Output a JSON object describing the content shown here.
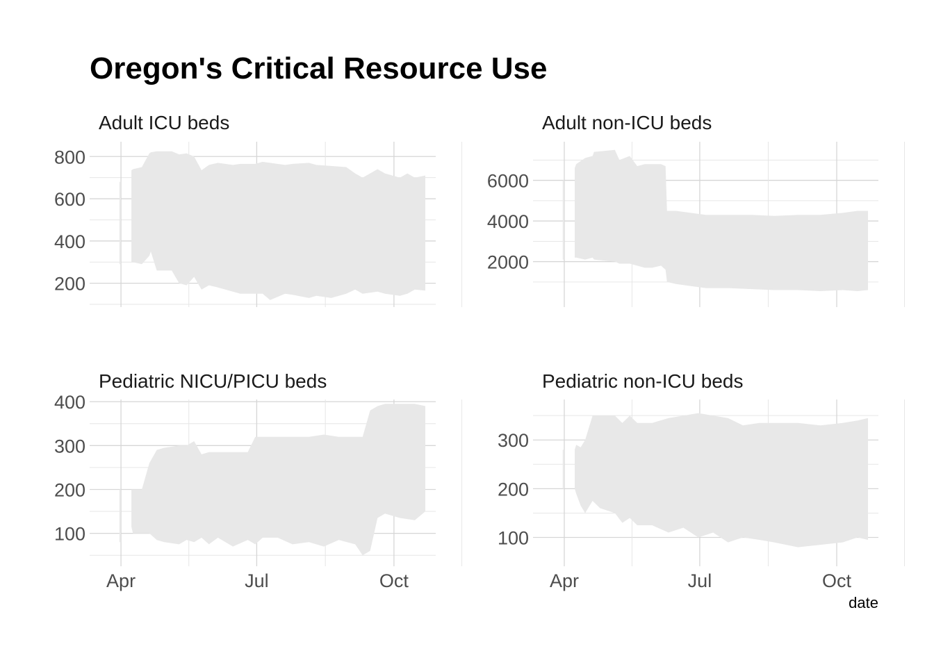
{
  "chart_data": {
    "type": "area",
    "title": "Oregon's Critical Resource Use",
    "xlabel": "date",
    "ylabel": "",
    "grid": true,
    "layout": "2x2 facets",
    "fill_color": "#e8e8e8",
    "x_ticks": [
      {
        "label": "Apr",
        "date": "2020-04-01"
      },
      {
        "label": "Jul",
        "date": "2020-07-01"
      },
      {
        "label": "Oct",
        "date": "2020-10-01"
      }
    ],
    "xlim": [
      "2020-03-11",
      "2020-10-29"
    ],
    "panels": [
      {
        "label": "Adult ICU beds",
        "ylim": [
          100,
          870
        ],
        "y_ticks": [
          200,
          400,
          600,
          800
        ],
        "x_labels_visible": false,
        "series": [
          {
            "x": [
              "2020-03-31",
              "2020-04-01",
              "2020-04-02",
              "2020-04-08",
              "2020-04-09",
              "2020-04-15",
              "2020-04-20",
              "2020-04-21",
              "2020-04-25",
              "2020-05-05",
              "2020-05-10",
              "2020-05-15",
              "2020-05-20",
              "2020-05-25",
              "2020-05-30",
              "2020-06-05",
              "2020-06-15",
              "2020-06-20",
              "2020-06-30",
              "2020-07-05",
              "2020-07-10",
              "2020-07-20",
              "2020-07-25",
              "2020-08-05",
              "2020-08-10",
              "2020-08-20",
              "2020-08-30",
              "2020-09-05",
              "2020-09-10",
              "2020-09-20",
              "2020-09-25",
              "2020-10-05",
              "2020-10-10",
              "2020-10-15",
              "2020-10-22"
            ],
            "upper": [
              680,
              680,
              null,
              735,
              740,
              750,
              815,
              820,
              825,
              825,
              810,
              815,
              800,
              735,
              760,
              770,
              760,
              765,
              765,
              775,
              770,
              760,
              765,
              770,
              760,
              755,
              750,
              720,
              700,
              740,
              720,
              700,
              720,
              700,
              710
            ],
            "lower": [
              290,
              290,
              null,
              300,
              300,
              290,
              330,
              350,
              260,
              260,
              200,
              190,
              230,
              170,
              190,
              180,
              160,
              150,
              150,
              150,
              120,
              150,
              145,
              130,
              140,
              130,
              150,
              170,
              150,
              160,
              150,
              140,
              150,
              170,
              165
            ]
          }
        ]
      },
      {
        "label": "Adult non-ICU beds",
        "ylim": [
          -100,
          7900
        ],
        "y_ticks": [
          2000,
          4000,
          6000
        ],
        "x_labels_visible": false,
        "series": [
          {
            "x": [
              "2020-03-31",
              "2020-04-01",
              "2020-04-02",
              "2020-04-08",
              "2020-04-09",
              "2020-04-15",
              "2020-04-20",
              "2020-04-21",
              "2020-05-05",
              "2020-05-08",
              "2020-05-15",
              "2020-05-20",
              "2020-05-25",
              "2020-05-30",
              "2020-06-05",
              "2020-06-08",
              "2020-06-09",
              "2020-06-15",
              "2020-06-25",
              "2020-07-05",
              "2020-07-20",
              "2020-08-05",
              "2020-08-20",
              "2020-09-05",
              "2020-09-20",
              "2020-10-05",
              "2020-10-15",
              "2020-10-22"
            ],
            "upper": [
              6000,
              6000,
              null,
              6600,
              6800,
              7100,
              7200,
              7400,
              7500,
              7000,
              7200,
              6700,
              6800,
              6800,
              6800,
              6700,
              4500,
              4500,
              4400,
              4300,
              4300,
              4300,
              4250,
              4300,
              4300,
              4400,
              4500,
              4500
            ],
            "lower": [
              2100,
              2100,
              null,
              2200,
              2200,
              2100,
              2200,
              2100,
              2000,
              1900,
              1900,
              1800,
              1700,
              1700,
              1800,
              1600,
              1000,
              900,
              800,
              700,
              700,
              650,
              600,
              600,
              550,
              600,
              550,
              600
            ]
          }
        ]
      },
      {
        "label": "Pediatric NICU/PICU beds",
        "ylim": [
          44,
          405
        ],
        "y_ticks": [
          100,
          200,
          300,
          400
        ],
        "x_labels_visible": true,
        "series": [
          {
            "x": [
              "2020-03-31",
              "2020-04-01",
              "2020-04-02",
              "2020-04-08",
              "2020-04-09",
              "2020-04-15",
              "2020-04-20",
              "2020-04-25",
              "2020-04-30",
              "2020-05-10",
              "2020-05-15",
              "2020-05-20",
              "2020-05-25",
              "2020-05-30",
              "2020-06-05",
              "2020-06-15",
              "2020-06-25",
              "2020-06-30",
              "2020-07-05",
              "2020-07-15",
              "2020-07-25",
              "2020-08-05",
              "2020-08-15",
              "2020-08-25",
              "2020-09-05",
              "2020-09-10",
              "2020-09-15",
              "2020-09-20",
              "2020-09-25",
              "2020-10-05",
              "2020-10-15",
              "2020-10-22"
            ],
            "upper": [
              200,
              200,
              null,
              200,
              200,
              200,
              260,
              290,
              295,
              300,
              300,
              310,
              280,
              285,
              285,
              285,
              285,
              320,
              320,
              320,
              320,
              320,
              325,
              320,
              320,
              320,
              380,
              390,
              395,
              395,
              395,
              390
            ],
            "lower": [
              80,
              80,
              null,
              115,
              100,
              100,
              100,
              85,
              80,
              75,
              85,
              80,
              90,
              75,
              90,
              70,
              85,
              75,
              90,
              90,
              75,
              80,
              70,
              85,
              75,
              50,
              60,
              135,
              145,
              135,
              130,
              150
            ]
          }
        ]
      },
      {
        "label": "Pediatric non-ICU beds",
        "ylim": [
          58,
          383
        ],
        "y_ticks": [
          100,
          200,
          300
        ],
        "x_labels_visible": true,
        "series": [
          {
            "x": [
              "2020-03-31",
              "2020-04-01",
              "2020-04-02",
              "2020-04-08",
              "2020-04-09",
              "2020-04-12",
              "2020-04-15",
              "2020-04-20",
              "2020-04-25",
              "2020-05-05",
              "2020-05-10",
              "2020-05-15",
              "2020-05-20",
              "2020-05-30",
              "2020-06-10",
              "2020-06-20",
              "2020-06-30",
              "2020-07-10",
              "2020-07-20",
              "2020-07-30",
              "2020-08-10",
              "2020-08-20",
              "2020-09-05",
              "2020-09-20",
              "2020-10-05",
              "2020-10-15",
              "2020-10-22"
            ],
            "upper": [
              280,
              280,
              null,
              280,
              290,
              285,
              300,
              350,
              350,
              350,
              335,
              350,
              335,
              335,
              345,
              350,
              355,
              350,
              345,
              330,
              335,
              335,
              335,
              330,
              335,
              340,
              345
            ],
            "lower": [
              200,
              200,
              null,
              200,
              190,
              165,
              150,
              175,
              160,
              150,
              130,
              140,
              125,
              125,
              110,
              120,
              100,
              110,
              90,
              100,
              95,
              90,
              80,
              85,
              90,
              100,
              95
            ]
          }
        ]
      }
    ]
  }
}
